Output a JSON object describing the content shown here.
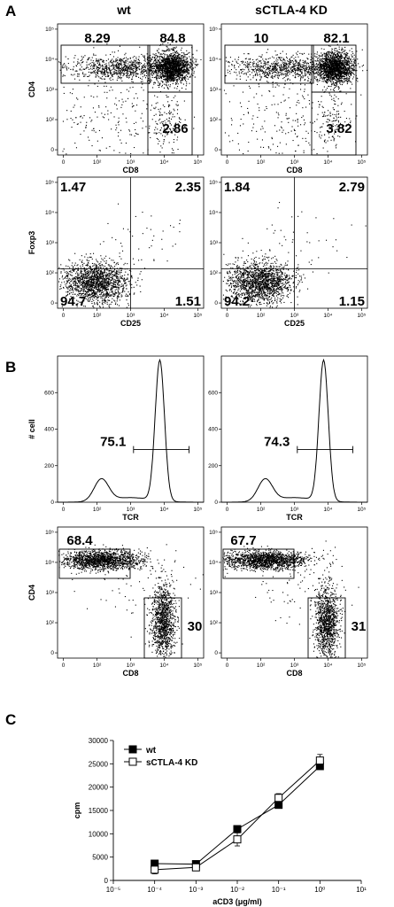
{
  "panel_labels": {
    "a": "A",
    "b": "B",
    "c": "C"
  },
  "column_titles": {
    "wt": "wt",
    "kd": "sCTLA-4 KD"
  },
  "colors": {
    "ink": "#000000",
    "background": "#ffffff"
  },
  "chart_data": [
    {
      "id": "A_cd4cd8_wt",
      "type": "scatter",
      "panel": "A",
      "column": "wt",
      "xlabel": "CD8",
      "ylabel": "CD4",
      "x_scale": "log",
      "y_scale": "log",
      "x_ticks": [
        "0",
        "10²",
        "10³",
        "10⁴",
        "10⁵"
      ],
      "y_ticks": [
        "0",
        "10²",
        "10³",
        "10⁴",
        "10⁵"
      ],
      "gates": [
        {
          "label": "8.29",
          "population": "CD4+CD8-",
          "percent": 8.29
        },
        {
          "label": "84.8",
          "population": "CD4+CD8+",
          "percent": 84.8
        },
        {
          "label": "2.86",
          "population": "CD4-CD8+",
          "percent": 2.86
        }
      ]
    },
    {
      "id": "A_cd4cd8_kd",
      "type": "scatter",
      "panel": "A",
      "column": "sCTLA-4 KD",
      "xlabel": "CD8",
      "ylabel": "",
      "x_scale": "log",
      "y_scale": "log",
      "x_ticks": [
        "0",
        "10²",
        "10³",
        "10⁴",
        "10⁵"
      ],
      "y_ticks": [
        "0",
        "10²",
        "10³",
        "10⁴",
        "10⁵"
      ],
      "gates": [
        {
          "label": "10",
          "population": "CD4+CD8-",
          "percent": 10
        },
        {
          "label": "82.1",
          "population": "CD4+CD8+",
          "percent": 82.1
        },
        {
          "label": "3.82",
          "population": "CD4-CD8+",
          "percent": 3.82
        }
      ]
    },
    {
      "id": "A_foxp3_wt",
      "type": "scatter",
      "panel": "A",
      "column": "wt",
      "xlabel": "CD25",
      "ylabel": "Foxp3",
      "x_scale": "log",
      "y_scale": "log",
      "x_ticks": [
        "0",
        "10²",
        "10³",
        "10⁴",
        "10⁵"
      ],
      "y_ticks": [
        "0",
        "10²",
        "10³",
        "10⁴",
        "10⁵"
      ],
      "quadrants": [
        {
          "label": "1.47",
          "position": "top-left",
          "percent": 1.47
        },
        {
          "label": "2.35",
          "position": "top-right",
          "percent": 2.35
        },
        {
          "label": "94.7",
          "position": "bottom-left",
          "percent": 94.7
        },
        {
          "label": "1.51",
          "position": "bottom-right",
          "percent": 1.51
        }
      ]
    },
    {
      "id": "A_foxp3_kd",
      "type": "scatter",
      "panel": "A",
      "column": "sCTLA-4 KD",
      "xlabel": "CD25",
      "ylabel": "",
      "x_scale": "log",
      "y_scale": "log",
      "x_ticks": [
        "0",
        "10²",
        "10³",
        "10⁴",
        "10⁵"
      ],
      "y_ticks": [
        "0",
        "10²",
        "10³",
        "10⁴",
        "10⁵"
      ],
      "quadrants": [
        {
          "label": "1.84",
          "position": "top-left",
          "percent": 1.84
        },
        {
          "label": "2.79",
          "position": "top-right",
          "percent": 2.79
        },
        {
          "label": "94.2",
          "position": "bottom-left",
          "percent": 94.2
        },
        {
          "label": "1.15",
          "position": "bottom-right",
          "percent": 1.15
        }
      ]
    },
    {
      "id": "B_tcr_wt",
      "type": "line",
      "subtype": "histogram",
      "panel": "B",
      "column": "wt",
      "xlabel": "TCR",
      "ylabel": "# cell",
      "x_scale": "log",
      "x_ticks": [
        "0",
        "10²",
        "10³",
        "10⁴",
        "10⁵"
      ],
      "y_ticks": [
        "0",
        "200",
        "400",
        "600"
      ],
      "ylim": [
        0,
        800
      ],
      "gates": [
        {
          "label": "75.1",
          "population": "TCR+",
          "percent": 75.1
        }
      ]
    },
    {
      "id": "B_tcr_kd",
      "type": "line",
      "subtype": "histogram",
      "panel": "B",
      "column": "sCTLA-4 KD",
      "xlabel": "TCR",
      "ylabel": "",
      "x_scale": "log",
      "x_ticks": [
        "0",
        "10²",
        "10³",
        "10⁴",
        "10⁵"
      ],
      "y_ticks": [
        "0",
        "200",
        "400",
        "600"
      ],
      "ylim": [
        0,
        800
      ],
      "gates": [
        {
          "label": "74.3",
          "population": "TCR+",
          "percent": 74.3
        }
      ]
    },
    {
      "id": "B_cd4cd8_wt",
      "type": "scatter",
      "panel": "B",
      "column": "wt",
      "xlabel": "CD8",
      "ylabel": "CD4",
      "x_scale": "log",
      "y_scale": "log",
      "x_ticks": [
        "0",
        "10²",
        "10³",
        "10⁴",
        "10⁵"
      ],
      "y_ticks": [
        "0",
        "10²",
        "10³",
        "10⁴",
        "10⁵"
      ],
      "gates": [
        {
          "label": "68.4",
          "population": "CD4+CD8-",
          "percent": 68.4
        },
        {
          "label": "30",
          "population": "CD4-CD8+",
          "percent": 30
        }
      ]
    },
    {
      "id": "B_cd4cd8_kd",
      "type": "scatter",
      "panel": "B",
      "column": "sCTLA-4 KD",
      "xlabel": "CD8",
      "ylabel": "",
      "x_scale": "log",
      "y_scale": "log",
      "x_ticks": [
        "0",
        "10²",
        "10³",
        "10⁴",
        "10⁵"
      ],
      "y_ticks": [
        "0",
        "10²",
        "10³",
        "10⁴",
        "10⁵"
      ],
      "gates": [
        {
          "label": "67.7",
          "population": "CD4+CD8-",
          "percent": 67.7
        },
        {
          "label": "31",
          "population": "CD4-CD8+",
          "percent": 31
        }
      ]
    },
    {
      "id": "C_proliferation",
      "type": "line",
      "panel": "C",
      "xlabel": "aCD3 (μg/ml)",
      "ylabel": "cpm",
      "x_scale": "log",
      "xlim_exponents": [
        -5,
        1
      ],
      "ylim": [
        0,
        30000
      ],
      "x_tick_labels": [
        "10⁻⁵",
        "10⁻⁴",
        "10⁻³",
        "10⁻²",
        "10⁻¹",
        "10⁰",
        "10¹"
      ],
      "y_tick_values": [
        0,
        5000,
        10000,
        15000,
        20000,
        25000,
        30000
      ],
      "y_tick_labels": [
        "0",
        "5000",
        "10000",
        "15000",
        "20000",
        "25000",
        "30000"
      ],
      "legend_position": "top-left",
      "x": [
        0.0001,
        0.001,
        0.01,
        0.1,
        1
      ],
      "series": [
        {
          "name": "wt",
          "marker": "filled-square",
          "values": [
            3600,
            3500,
            11000,
            16200,
            24500
          ],
          "errors": [
            400,
            400,
            600,
            600,
            700
          ]
        },
        {
          "name": "sCTLA-4 KD",
          "marker": "open-square",
          "values": [
            2300,
            2800,
            8800,
            17700,
            25700
          ],
          "errors": [
            900,
            700,
            1400,
            900,
            1300
          ]
        }
      ]
    }
  ]
}
